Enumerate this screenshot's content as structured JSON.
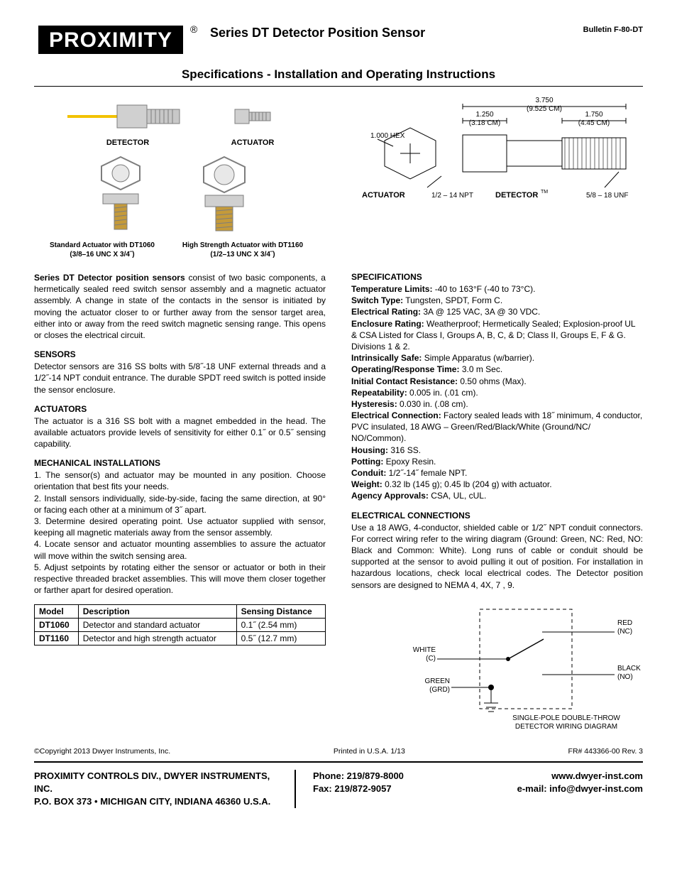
{
  "header": {
    "logo_text": "PROXIMITY",
    "title1": "Series DT Detector Position Sensor",
    "bulletin": "Bulletin F-80-DT",
    "title2": "Specifications - Installation and Operating Instructions"
  },
  "figures": {
    "detector_label": "DETECTOR",
    "actuator_label": "ACTUATOR",
    "std_actuator_caption_l1": "Standard Actuator with DT1060",
    "std_actuator_caption_l2": "(3/8–16 UNC X 3/4˝)",
    "hs_actuator_caption_l1": "High Strength Actuator with DT1160",
    "hs_actuator_caption_l2": "(1/2–13 UNC X 3/4˝)",
    "dim": {
      "hex": "1.000 HEX",
      "d1": "1.250",
      "d1m": "(3.18 CM)",
      "d2": "3.750",
      "d2m": "(9.525 CM)",
      "d3": "1.750",
      "d3m": "(4.45 CM)",
      "act_lbl": "ACTUATOR",
      "npt": "1/2  – 14 NPT",
      "det_lbl": "DETECTOR",
      "tm": "TM",
      "unf": "5/8  – 18 UNF"
    }
  },
  "intro": {
    "lead": "Series DT Detector position sensors",
    "body": " consist of two basic components, a hermetically sealed reed switch sensor assembly and a magnetic actuator assembly. A change in state of the contacts in the sensor is initiated by moving the actuator closer to or further away from the sensor target area, either into or away from the reed switch magnetic sensing range. This opens or closes the electrical circuit."
  },
  "sensors": {
    "head": "SENSORS",
    "body": "Detector sensors are 316 SS bolts with 5/8˝-18 UNF external threads and a 1/2˝-14 NPT conduit entrance. The durable SPDT reed switch is potted inside the sensor enclosure."
  },
  "actuators": {
    "head": "ACTUATORS",
    "body": "The actuator is a 316 SS bolt with a magnet embedded in the head. The available actuators provide levels of sensitivity for either 0.1˝ or 0.5˝ sensing capability."
  },
  "mech": {
    "head": "MECHANICAL INSTALLATIONS",
    "steps": [
      "1. The sensor(s) and actuator may be mounted in any position. Choose orientation that best fits your needs.",
      "2. Install sensors individually, side-by-side, facing the same direction, at 90°  or facing each other at a minimum of 3˝ apart.",
      "3. Determine desired operating point. Use actuator supplied with sensor, keeping all magnetic materials away from the sensor assembly.",
      "4. Locate sensor and actuator mounting assemblies to assure the actuator will move within the switch sensing area.",
      "5. Adjust setpoints by rotating either the sensor or actuator or both in their respective threaded bracket assemblies. This will move them closer together or farther apart for desired operation."
    ]
  },
  "table": {
    "headers": [
      "Model",
      "Description",
      "Sensing Distance"
    ],
    "rows": [
      [
        "DT1060",
        "Detector and standard actuator",
        "0.1˝ (2.54 mm)"
      ],
      [
        "DT1160",
        "Detector and high strength actuator",
        "0.5˝ (12.7 mm)"
      ]
    ]
  },
  "specs": {
    "head": "SPECIFICATIONS",
    "items": [
      {
        "k": "Temperature Limits:",
        "v": " -40 to 163°F (-40 to 73°C)."
      },
      {
        "k": "Switch Type:",
        "v": " Tungsten, SPDT, Form C."
      },
      {
        "k": "Electrical Rating:",
        "v": " 3A @ 125 VAC, 3A @ 30 VDC."
      },
      {
        "k": "Enclosure Rating:",
        "v": " Weatherproof; Hermetically Sealed; Explosion-proof UL & CSA Listed for Class I, Groups A, B, C, & D; Class II, Groups E, F & G. Divisions 1 & 2."
      },
      {
        "k": "Intrinsically Safe:",
        "v": " Simple Apparatus (w/barrier)."
      },
      {
        "k": "Operating/Response Time:",
        "v": " 3.0 m Sec."
      },
      {
        "k": "Initial Contact Resistance:",
        "v": " 0.50 ohms (Max)."
      },
      {
        "k": "Repeatability:",
        "v": " 0.005 in. (.01 cm)."
      },
      {
        "k": "Hysteresis:",
        "v": " 0.030 in. (.08 cm)."
      },
      {
        "k": "Electrical Connection:",
        "v": " Factory sealed leads with 18˝ minimum, 4 conductor, PVC insulated, 18 AWG – Green/Red/Black/White (Ground/NC/ NO/Common)."
      },
      {
        "k": "Housing:",
        "v": " 316 SS."
      },
      {
        "k": "Potting:",
        "v": " Epoxy Resin."
      },
      {
        "k": "Conduit:",
        "v": " 1/2˝-14˝ female NPT."
      },
      {
        "k": "Weight:",
        "v": " 0.32 lb (145 g); 0.45 lb (204 g) with actuator."
      },
      {
        "k": "Agency Approvals:",
        "v": " CSA, UL, cUL."
      }
    ]
  },
  "elec": {
    "head": "ELECTRICAL CONNECTIONS",
    "body": "Use a 18 AWG, 4-conductor, shielded cable or 1/2˝ NPT conduit connectors. For correct wiring refer to the wiring diagram (Ground: Green, NC: Red, NO: Black and Common: White). Long runs of cable or conduit should be supported at the sensor to avoid pulling it out of position. For installation in hazardous locations, check local electrical codes. The Detector position sensors are designed to NEMA 4, 4X, 7 , 9."
  },
  "wiring": {
    "white": "WHITE",
    "white_sub": "(C)",
    "red": "RED",
    "red_sub": "(NC)",
    "black": "BLACK",
    "black_sub": "(NO)",
    "green": "GREEN",
    "green_sub": "(GRD)",
    "caption1": "SINGLE-POLE DOUBLE-THROW",
    "caption2": "DETECTOR WIRING DIAGRAM"
  },
  "copyright": {
    "left": "©Copyright 2013 Dwyer Instruments, Inc.",
    "center": "Printed in U.S.A. 1/13",
    "right": "FR# 443366-00 Rev. 3"
  },
  "footer": {
    "addr1": "PROXIMITY CONTROLS DIV., DWYER INSTRUMENTS, INC.",
    "addr2": "P.O. BOX 373 • MICHIGAN CITY, INDIANA 46360 U.S.A.",
    "phone": "Phone: 219/879-8000",
    "fax": "Fax: 219/872-9057",
    "web": "www.dwyer-inst.com",
    "email": "e-mail: info@dwyer-inst.com"
  },
  "colors": {
    "text": "#000000",
    "bg": "#ffffff",
    "brass": "#b8860b",
    "steel": "#bfbfbf",
    "steel_dk": "#7d7d7d",
    "yellow_wire": "#f2c200"
  }
}
